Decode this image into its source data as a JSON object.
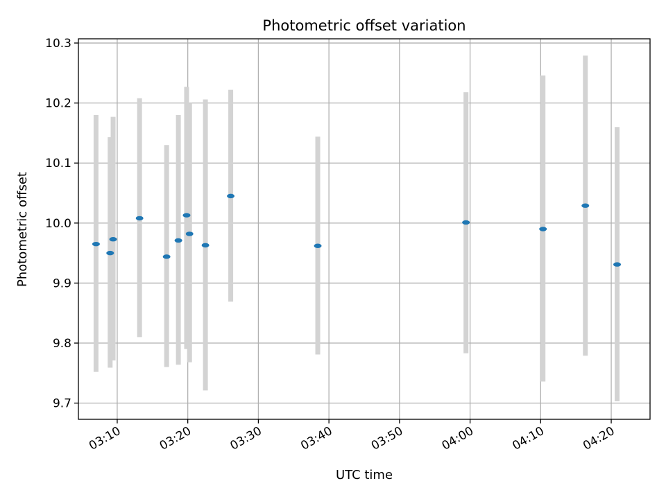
{
  "chart_data": {
    "type": "scatter",
    "title": "Photometric offset variation",
    "xlabel": "UTC time",
    "ylabel": "Photometric offset",
    "x_unit": "UTC time (HH:MM)",
    "xlim": [
      "03:04:30",
      "04:25:30"
    ],
    "ylim": [
      9.673,
      10.307
    ],
    "xticks": [
      "03:10",
      "03:20",
      "03:30",
      "03:40",
      "03:50",
      "04:00",
      "04:10",
      "04:20"
    ],
    "yticks": [
      "9.7",
      "9.8",
      "9.9",
      "10.0",
      "10.1",
      "10.2",
      "10.3"
    ],
    "grid": true,
    "point_color": "#1f77b4",
    "errorbar_color": "#d3d3d3",
    "points": [
      {
        "time": "03:07:00",
        "y": 9.965,
        "err_low": 9.752,
        "err_high": 10.18
      },
      {
        "time": "03:09:00",
        "y": 9.95,
        "err_low": 9.759,
        "err_high": 10.143
      },
      {
        "time": "03:09:25",
        "y": 9.973,
        "err_low": 9.771,
        "err_high": 10.177
      },
      {
        "time": "03:13:10",
        "y": 10.008,
        "err_low": 9.81,
        "err_high": 10.208
      },
      {
        "time": "03:17:00",
        "y": 9.944,
        "err_low": 9.76,
        "err_high": 10.13
      },
      {
        "time": "03:18:40",
        "y": 9.971,
        "err_low": 9.764,
        "err_high": 10.18
      },
      {
        "time": "03:19:50",
        "y": 10.013,
        "err_low": 9.79,
        "err_high": 10.227
      },
      {
        "time": "03:20:15",
        "y": 9.982,
        "err_low": 9.768,
        "err_high": 10.2
      },
      {
        "time": "03:22:30",
        "y": 9.963,
        "err_low": 9.721,
        "err_high": 10.206
      },
      {
        "time": "03:26:05",
        "y": 10.045,
        "err_low": 9.869,
        "err_high": 10.222
      },
      {
        "time": "03:38:25",
        "y": 9.962,
        "err_low": 9.781,
        "err_high": 10.144
      },
      {
        "time": "03:59:25",
        "y": 10.001,
        "err_low": 9.783,
        "err_high": 10.218
      },
      {
        "time": "04:10:20",
        "y": 9.99,
        "err_low": 9.736,
        "err_high": 10.246
      },
      {
        "time": "04:16:20",
        "y": 10.029,
        "err_low": 9.779,
        "err_high": 10.279
      },
      {
        "time": "04:20:50",
        "y": 9.931,
        "err_low": 9.703,
        "err_high": 10.16
      }
    ]
  }
}
